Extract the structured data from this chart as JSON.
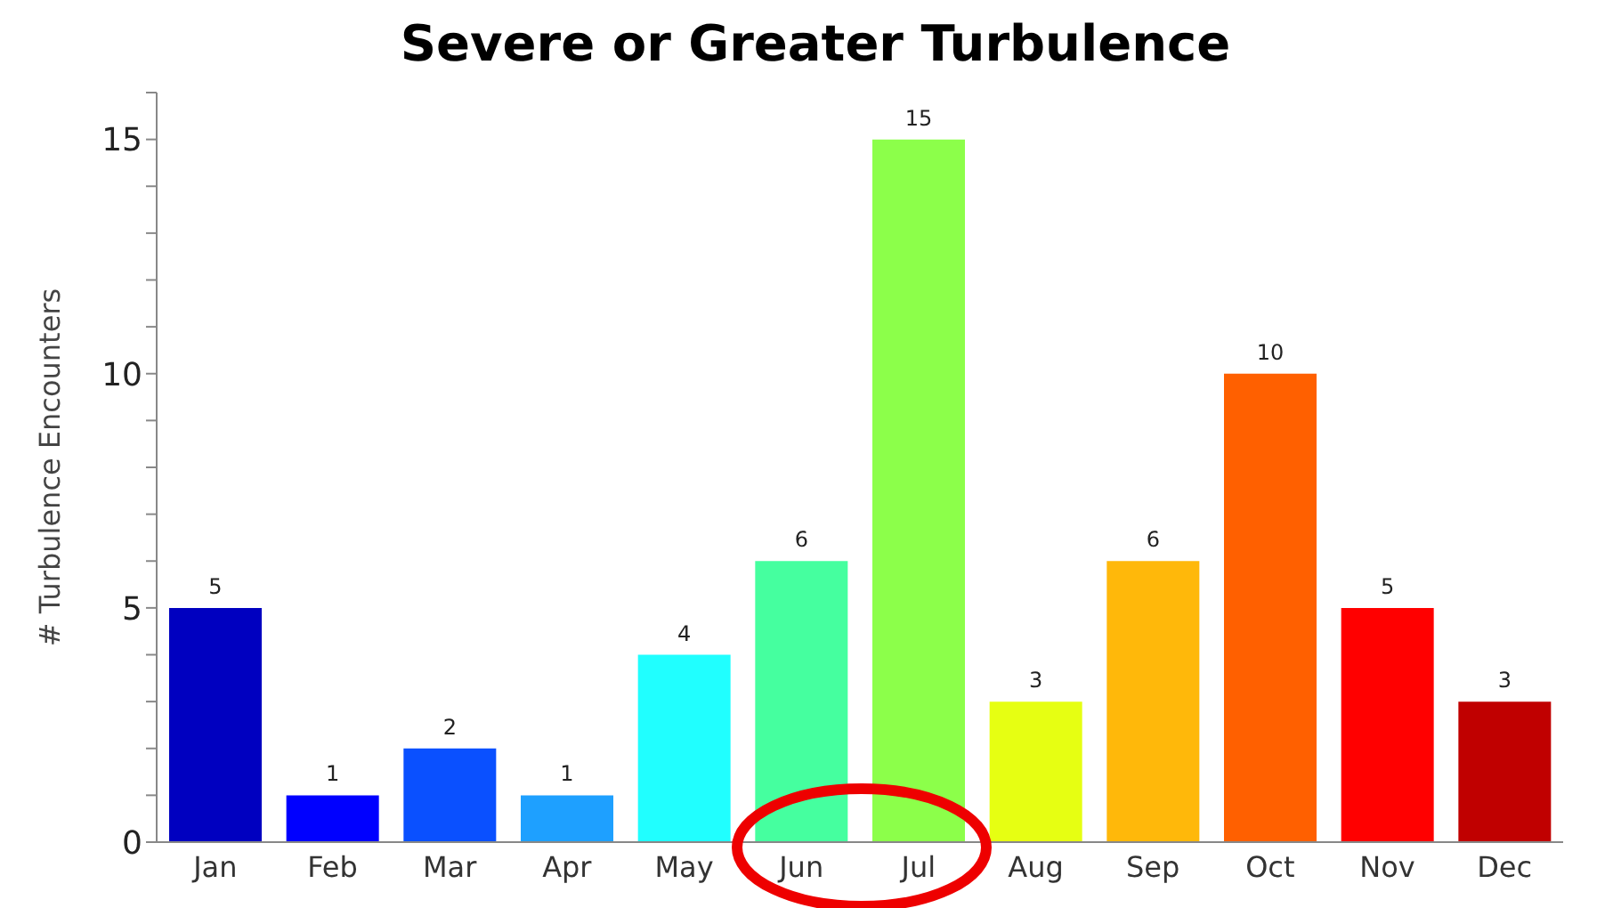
{
  "chart_data": {
    "type": "bar",
    "title": "Severe or Greater Turbulence",
    "ylabel": "# Turbulence Encounters",
    "categories": [
      "Jan",
      "Feb",
      "Mar",
      "Apr",
      "May",
      "Jun",
      "Jul",
      "Aug",
      "Sep",
      "Oct",
      "Nov",
      "Dec"
    ],
    "values": [
      5,
      1,
      2,
      1,
      4,
      6,
      15,
      3,
      6,
      10,
      5,
      3
    ],
    "colors": [
      "#0000c0",
      "#0000ff",
      "#0a50ff",
      "#1ea0ff",
      "#20ffff",
      "#45ff9f",
      "#8cff4a",
      "#e6ff12",
      "#ffb80a",
      "#ff6000",
      "#ff0000",
      "#c00000"
    ],
    "ylim": [
      0,
      16
    ],
    "yticks": [
      0,
      {
        "value": 1,
        "label": null
      },
      {
        "value": 2,
        "label": null
      },
      {
        "value": 3,
        "label": null
      },
      {
        "value": 4,
        "label": null
      },
      5,
      {
        "value": 6,
        "label": null
      },
      {
        "value": 7,
        "label": null
      },
      {
        "value": 8,
        "label": null
      },
      {
        "value": 9,
        "label": null
      },
      10,
      {
        "value": 11,
        "label": null
      },
      {
        "value": 12,
        "label": null
      },
      {
        "value": 13,
        "label": null
      },
      {
        "value": 14,
        "label": null
      },
      15,
      {
        "value": 16,
        "label": null
      }
    ],
    "data_labels": true,
    "grid": false,
    "legend": false
  }
}
